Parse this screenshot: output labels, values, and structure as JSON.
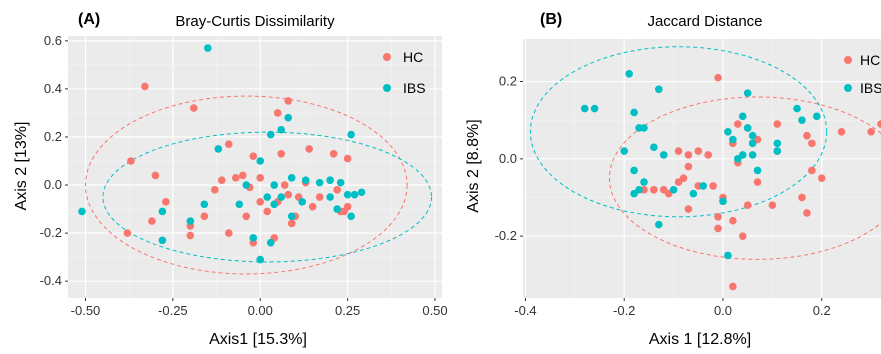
{
  "chart_data": [
    {
      "type": "scatter",
      "panel": "(A)",
      "title": "Bray-Curtis Dissimilarity",
      "xlabel": "Axis1 [15.3%]",
      "ylabel": "Axis 2 [13%]",
      "xlim": [
        -0.55,
        0.52
      ],
      "ylim": [
        -0.47,
        0.62
      ],
      "xticks": [
        -0.5,
        -0.25,
        0.0,
        0.25,
        0.5
      ],
      "xtick_labels": [
        "-0.50",
        "-0.25",
        "0.00",
        "0.25",
        "0.50"
      ],
      "yticks": [
        -0.4,
        -0.2,
        0.0,
        0.2,
        0.4,
        0.6
      ],
      "ytick_labels": [
        "-0.4",
        "-0.2",
        "0.0",
        "0.2",
        "0.4",
        "0.6"
      ],
      "grid": true,
      "legend_position": "top-right",
      "series": [
        {
          "name": "HC",
          "color": "#F8766D",
          "points": [
            [
              -0.33,
              0.41
            ],
            [
              -0.37,
              0.1
            ],
            [
              -0.3,
              0.04
            ],
            [
              -0.19,
              0.32
            ],
            [
              -0.09,
              0.17
            ],
            [
              0.08,
              0.35
            ],
            [
              0.05,
              0.3
            ],
            [
              -0.02,
              0.12
            ],
            [
              0.06,
              0.13
            ],
            [
              0.14,
              0.15
            ],
            [
              0.21,
              0.13
            ],
            [
              0.25,
              0.11
            ],
            [
              0.2,
              0.02
            ],
            [
              -0.05,
              0.04
            ],
            [
              -0.07,
              0.03
            ],
            [
              -0.11,
              0.02
            ],
            [
              -0.13,
              -0.02
            ],
            [
              -0.16,
              -0.13
            ],
            [
              -0.2,
              -0.17
            ],
            [
              -0.27,
              -0.07
            ],
            [
              -0.31,
              -0.15
            ],
            [
              -0.38,
              -0.2
            ],
            [
              -0.04,
              -0.13
            ],
            [
              0.0,
              -0.07
            ],
            [
              0.02,
              -0.11
            ],
            [
              0.05,
              -0.07
            ],
            [
              0.07,
              0.0
            ],
            [
              0.08,
              -0.04
            ],
            [
              0.1,
              -0.13
            ],
            [
              0.11,
              -0.05
            ],
            [
              0.13,
              0.01
            ],
            [
              0.15,
              -0.09
            ],
            [
              0.17,
              -0.05
            ],
            [
              0.22,
              -0.02
            ],
            [
              0.23,
              -0.11
            ],
            [
              0.25,
              -0.09
            ],
            [
              -0.09,
              -0.2
            ],
            [
              -0.02,
              -0.24
            ],
            [
              0.04,
              -0.22
            ],
            [
              0.09,
              -0.16
            ],
            [
              -0.03,
              -0.01
            ],
            [
              0.0,
              0.03
            ],
            [
              -0.2,
              -0.21
            ],
            [
              0.24,
              -0.11
            ]
          ]
        },
        {
          "name": "IBS",
          "color": "#00BFC4",
          "points": [
            [
              -0.15,
              0.57
            ],
            [
              0.06,
              0.23
            ],
            [
              0.08,
              0.28
            ],
            [
              0.26,
              0.21
            ],
            [
              0.03,
              0.21
            ],
            [
              -0.12,
              0.15
            ],
            [
              -0.04,
              0.0
            ],
            [
              0.09,
              0.03
            ],
            [
              0.13,
              0.02
            ],
            [
              0.17,
              0.01
            ],
            [
              0.2,
              0.02
            ],
            [
              0.23,
              0.01
            ],
            [
              0.27,
              -0.04
            ],
            [
              0.29,
              -0.03
            ],
            [
              0.2,
              -0.05
            ],
            [
              0.06,
              -0.05
            ],
            [
              0.04,
              0.0
            ],
            [
              0.04,
              -0.08
            ],
            [
              -0.06,
              -0.08
            ],
            [
              0.12,
              -0.07
            ],
            [
              -0.16,
              -0.08
            ],
            [
              -0.28,
              -0.11
            ],
            [
              -0.51,
              -0.11
            ],
            [
              -0.28,
              -0.23
            ],
            [
              -0.2,
              -0.15
            ],
            [
              0.03,
              -0.24
            ],
            [
              0.0,
              -0.31
            ],
            [
              0.09,
              -0.13
            ],
            [
              0.22,
              -0.1
            ],
            [
              0.26,
              -0.13
            ],
            [
              0.0,
              0.1
            ],
            [
              -0.02,
              -0.22
            ],
            [
              0.02,
              -0.05
            ],
            [
              0.25,
              -0.04
            ]
          ]
        }
      ],
      "ellipses": [
        {
          "series": "HC",
          "center": [
            -0.04,
            0.0
          ],
          "rx": 0.46,
          "ry": 0.37
        },
        {
          "series": "IBS",
          "center": [
            0.02,
            -0.05
          ],
          "rx": 0.47,
          "ry": 0.27
        }
      ]
    },
    {
      "type": "scatter",
      "panel": "(B)",
      "title": "Jaccard Distance",
      "xlabel": "Axis 1 [12.8%]",
      "ylabel": "Axis 2 [8.8%]",
      "xlim": [
        -0.405,
        0.32
      ],
      "ylim": [
        -0.36,
        0.31
      ],
      "xticks": [
        -0.4,
        -0.2,
        0.0,
        0.2
      ],
      "xtick_labels": [
        "-0.4",
        "-0.2",
        "0.0",
        "0.2"
      ],
      "yticks": [
        -0.2,
        0.0,
        0.2
      ],
      "ytick_labels": [
        "-0.2",
        "0.0",
        "0.2"
      ],
      "grid": true,
      "legend_position": "top-right",
      "series": [
        {
          "name": "HC",
          "color": "#F8766D",
          "points": [
            [
              -0.01,
              0.21
            ],
            [
              0.03,
              0.09
            ],
            [
              0.05,
              0.08
            ],
            [
              0.11,
              0.09
            ],
            [
              0.24,
              0.07
            ],
            [
              0.32,
              0.09
            ],
            [
              0.3,
              0.07
            ],
            [
              0.17,
              0.06
            ],
            [
              0.18,
              0.04
            ],
            [
              0.11,
              0.02
            ],
            [
              0.02,
              0.04
            ],
            [
              -0.03,
              0.01
            ],
            [
              -0.05,
              0.02
            ],
            [
              -0.07,
              0.01
            ],
            [
              -0.09,
              0.02
            ],
            [
              -0.07,
              -0.02
            ],
            [
              -0.08,
              -0.05
            ],
            [
              -0.09,
              -0.06
            ],
            [
              -0.12,
              -0.08
            ],
            [
              -0.11,
              -0.09
            ],
            [
              -0.14,
              -0.08
            ],
            [
              -0.16,
              -0.08
            ],
            [
              -0.07,
              -0.13
            ],
            [
              -0.05,
              -0.07
            ],
            [
              -0.02,
              -0.07
            ],
            [
              0.0,
              -0.1
            ],
            [
              -0.01,
              -0.15
            ],
            [
              -0.01,
              -0.18
            ],
            [
              0.02,
              -0.16
            ],
            [
              0.04,
              -0.2
            ],
            [
              0.05,
              -0.12
            ],
            [
              0.1,
              -0.12
            ],
            [
              0.16,
              -0.1
            ],
            [
              0.18,
              -0.03
            ],
            [
              0.2,
              -0.05
            ],
            [
              0.17,
              -0.14
            ],
            [
              0.02,
              -0.33
            ],
            [
              0.07,
              -0.06
            ],
            [
              0.03,
              -0.01
            ],
            [
              0.07,
              0.05
            ]
          ]
        },
        {
          "name": "IBS",
          "color": "#00BFC4",
          "points": [
            [
              -0.19,
              0.22
            ],
            [
              -0.28,
              0.13
            ],
            [
              -0.26,
              0.13
            ],
            [
              -0.18,
              0.12
            ],
            [
              -0.17,
              0.08
            ],
            [
              -0.13,
              0.18
            ],
            [
              -0.14,
              0.03
            ],
            [
              -0.2,
              0.02
            ],
            [
              -0.16,
              0.08
            ],
            [
              -0.12,
              0.01
            ],
            [
              0.05,
              0.17
            ],
            [
              0.04,
              0.11
            ],
            [
              0.05,
              0.08
            ],
            [
              0.06,
              0.06
            ],
            [
              0.06,
              0.04
            ],
            [
              0.04,
              0.01
            ],
            [
              0.03,
              0.0
            ],
            [
              0.06,
              0.01
            ],
            [
              0.11,
              0.04
            ],
            [
              0.11,
              0.02
            ],
            [
              0.15,
              0.13
            ],
            [
              0.16,
              0.1
            ],
            [
              0.19,
              0.11
            ],
            [
              0.01,
              0.07
            ],
            [
              0.02,
              0.05
            ],
            [
              -0.18,
              -0.09
            ],
            [
              -0.17,
              -0.08
            ],
            [
              -0.16,
              -0.06
            ],
            [
              -0.1,
              -0.08
            ],
            [
              -0.06,
              -0.09
            ],
            [
              -0.04,
              -0.07
            ],
            [
              -0.13,
              -0.17
            ],
            [
              -0.18,
              -0.03
            ],
            [
              0.01,
              -0.25
            ],
            [
              0.0,
              -0.11
            ],
            [
              0.07,
              -0.03
            ]
          ]
        }
      ],
      "ellipses": [
        {
          "series": "HC",
          "center": [
            0.07,
            -0.05
          ],
          "rx": 0.3,
          "ry": 0.21
        },
        {
          "series": "IBS",
          "center": [
            -0.09,
            0.07
          ],
          "rx": 0.3,
          "ry": 0.22
        }
      ]
    }
  ]
}
